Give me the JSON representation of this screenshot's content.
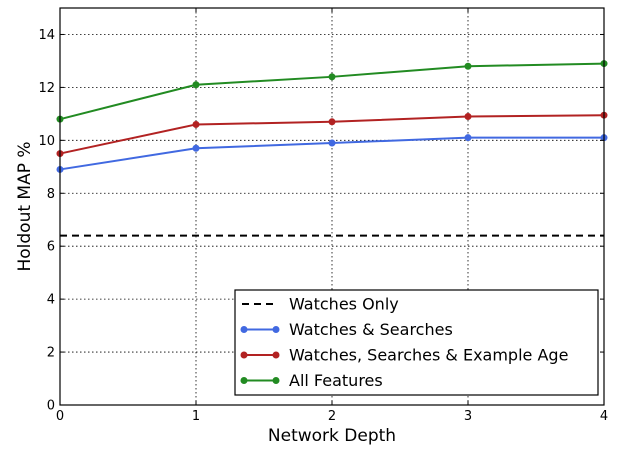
{
  "chart_data": {
    "type": "line",
    "title": "",
    "xlabel": "Network Depth",
    "ylabel": "Holdout MAP %",
    "xlim": [
      0,
      4
    ],
    "ylim": [
      0,
      15
    ],
    "x_ticks": [
      0,
      1,
      2,
      3,
      4
    ],
    "y_ticks": [
      0,
      2,
      4,
      6,
      8,
      10,
      12,
      14
    ],
    "x_tick_labels": [
      "0",
      "1",
      "2",
      "3",
      "4"
    ],
    "y_tick_labels": [
      "0",
      "2",
      "4",
      "6",
      "8",
      "10",
      "12",
      "14"
    ],
    "grid": true,
    "legend_position": "lower-right",
    "x": [
      0,
      1,
      2,
      3,
      4
    ],
    "series": [
      {
        "name": "Watches Only",
        "values": [
          6.4,
          6.4,
          6.4,
          6.4,
          6.4
        ],
        "color": "#000000",
        "style": "dashed",
        "markers": false
      },
      {
        "name": "Watches & Searches",
        "values": [
          8.9,
          9.7,
          9.9,
          10.1,
          10.1
        ],
        "color": "#4169e1",
        "style": "solid",
        "markers": true
      },
      {
        "name": "Watches, Searches & Example Age",
        "values": [
          9.5,
          10.6,
          10.7,
          10.9,
          10.95
        ],
        "color": "#b22222",
        "style": "solid",
        "markers": true
      },
      {
        "name": "All Features",
        "values": [
          10.8,
          12.1,
          12.4,
          12.8,
          12.9
        ],
        "color": "#228b22",
        "style": "solid",
        "markers": true
      }
    ]
  }
}
